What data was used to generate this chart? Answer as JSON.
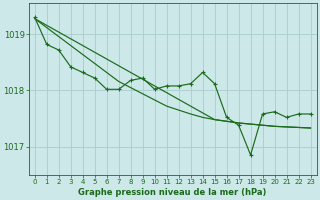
{
  "title": "Graphe pression niveau de la mer (hPa)",
  "bg_color": "#cce8e8",
  "grid_color": "#aacccc",
  "line_color": "#1a6b1a",
  "xlim": [
    -0.5,
    23.5
  ],
  "ylim": [
    1016.5,
    1019.55
  ],
  "yticks": [
    1017,
    1018,
    1019
  ],
  "xticks": [
    0,
    1,
    2,
    3,
    4,
    5,
    6,
    7,
    8,
    9,
    10,
    11,
    12,
    13,
    14,
    15,
    16,
    17,
    18,
    19,
    20,
    21,
    22,
    23
  ],
  "series_main": [
    1019.3,
    1018.82,
    1018.72,
    1018.42,
    1018.32,
    1018.22,
    1018.02,
    1018.02,
    1018.18,
    1018.22,
    1018.02,
    1018.08,
    1018.08,
    1018.12,
    1018.32,
    1018.12,
    1017.52,
    1017.38,
    1016.85,
    1017.58,
    1017.62,
    1017.52,
    1017.58,
    1017.58
  ],
  "series_linear1": [
    1019.28,
    1019.16,
    1019.04,
    1018.92,
    1018.8,
    1018.68,
    1018.56,
    1018.44,
    1018.32,
    1018.2,
    1018.08,
    1017.96,
    1017.84,
    1017.72,
    1017.6,
    1017.48,
    1017.45,
    1017.42,
    1017.4,
    1017.38,
    1017.36,
    1017.35,
    1017.34,
    1017.33
  ],
  "series_linear2": [
    1019.28,
    1019.12,
    1018.96,
    1018.8,
    1018.64,
    1018.48,
    1018.32,
    1018.16,
    1018.05,
    1017.94,
    1017.83,
    1017.72,
    1017.65,
    1017.58,
    1017.52,
    1017.48,
    1017.45,
    1017.42,
    1017.4,
    1017.38,
    1017.36,
    1017.35,
    1017.34,
    1017.33
  ]
}
